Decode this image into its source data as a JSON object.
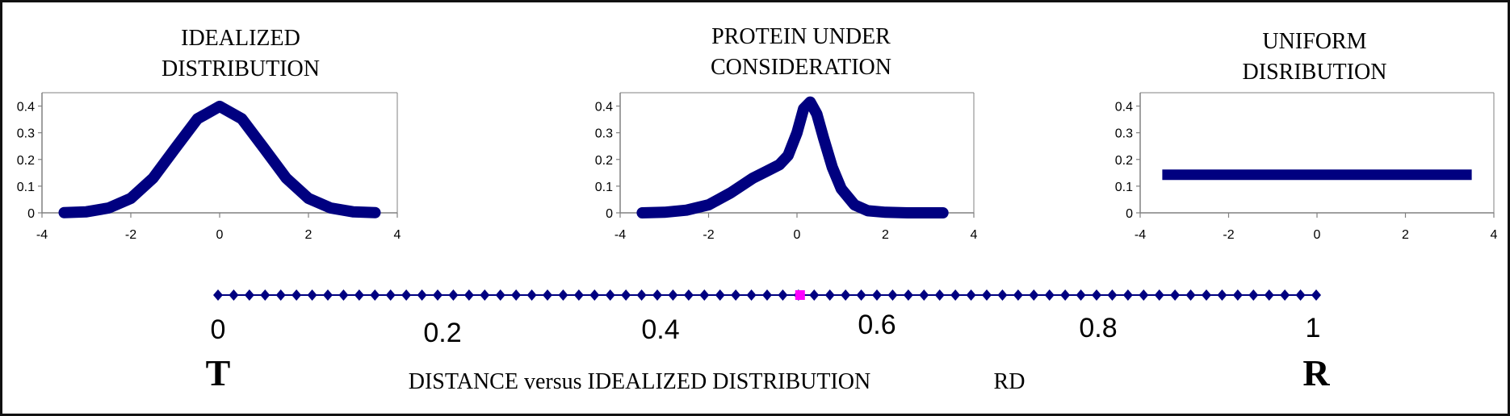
{
  "colors": {
    "series": "#000080",
    "marker": "#FF00FF",
    "axis": "#808080",
    "text": "#000000"
  },
  "chart_data": [
    {
      "type": "line",
      "title": [
        "IDEALIZED",
        "DISTRIBUTION"
      ],
      "xlim": [
        -4,
        4
      ],
      "ylim": [
        0,
        0.45
      ],
      "xticks": [
        -4,
        -2,
        0,
        2,
        4
      ],
      "yticks": [
        0,
        0.1,
        0.2,
        0.3,
        0.4
      ],
      "series": [
        {
          "x": [
            -3.5,
            -3.0,
            -2.5,
            -2.0,
            -1.5,
            -1.0,
            -0.5,
            0.0,
            0.5,
            1.0,
            1.5,
            2.0,
            2.5,
            3.0,
            3.5
          ],
          "y": [
            0.001,
            0.004,
            0.018,
            0.054,
            0.13,
            0.242,
            0.352,
            0.399,
            0.352,
            0.242,
            0.13,
            0.054,
            0.018,
            0.004,
            0.001
          ]
        }
      ]
    },
    {
      "type": "line",
      "title": [
        "PROTEIN UNDER",
        "CONSIDERATION"
      ],
      "xlim": [
        -4,
        4
      ],
      "ylim": [
        0,
        0.45
      ],
      "xticks": [
        -4,
        -2,
        0,
        2,
        4
      ],
      "yticks": [
        0,
        0.1,
        0.2,
        0.3,
        0.4
      ],
      "series": [
        {
          "x": [
            -3.5,
            -3.0,
            -2.5,
            -2.0,
            -1.5,
            -1.0,
            -0.7,
            -0.4,
            -0.2,
            0.0,
            0.15,
            0.3,
            0.45,
            0.6,
            0.8,
            1.0,
            1.3,
            1.6,
            2.0,
            2.5,
            3.3
          ],
          "y": [
            0.0,
            0.002,
            0.01,
            0.03,
            0.075,
            0.13,
            0.155,
            0.18,
            0.215,
            0.3,
            0.39,
            0.415,
            0.37,
            0.28,
            0.17,
            0.09,
            0.03,
            0.008,
            0.002,
            0.0,
            0.0
          ]
        }
      ]
    },
    {
      "type": "line",
      "title": [
        "UNIFORM",
        "DISRIBUTION"
      ],
      "xlim": [
        -4,
        4
      ],
      "ylim": [
        0,
        0.45
      ],
      "xticks": [
        -4,
        -2,
        0,
        2,
        4
      ],
      "yticks": [
        0,
        0.1,
        0.2,
        0.3,
        0.4
      ],
      "series": [
        {
          "x": [
            -3.5,
            3.5
          ],
          "y": [
            0.143,
            0.143
          ]
        }
      ]
    },
    {
      "type": "scatter",
      "xlim": [
        0,
        1
      ],
      "xticks": [
        "0",
        "0.2",
        "0.4",
        "0.6",
        "0.8",
        "1"
      ],
      "points": 71,
      "highlight_x": 0.53,
      "end_labels": [
        "T",
        "R"
      ],
      "caption": "DISTANCE versus IDEALIZED DISTRIBUTION",
      "caption2": "RD"
    }
  ]
}
